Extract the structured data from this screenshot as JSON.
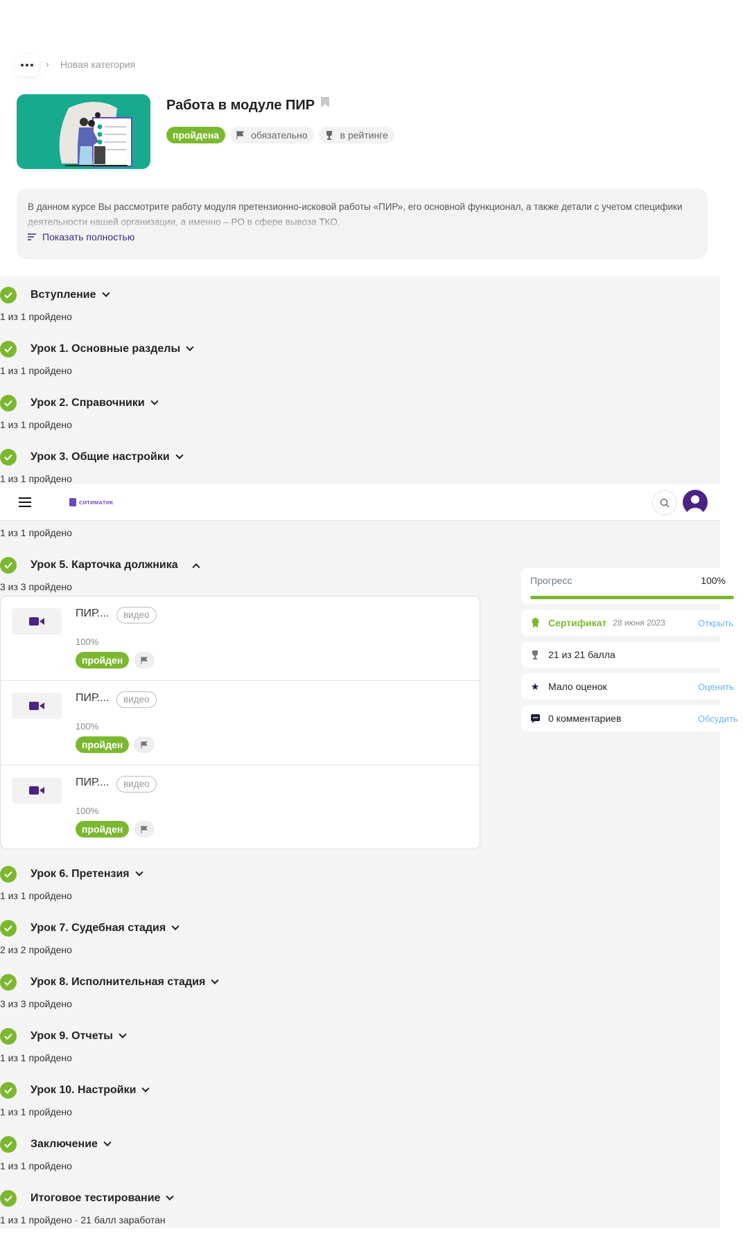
{
  "breadcrumb": {
    "more_icon": "more-dots-icon",
    "current": "Новая категория"
  },
  "course": {
    "title": "Работа в модуле ПИР",
    "chips": {
      "status": "пройдена",
      "required": "обязательно",
      "rating": "в рейтинге"
    },
    "description": "В данном курсе Вы рассмотрите работу модуля претензионно-исковой работы «ПИР», его основной функционал, а также детали с учетом специфики деятельности нашей организации, а именно – РО в сфере вывоза ТКО.",
    "show_more": "Показать полностью"
  },
  "topbar": {
    "logo": "СИТИМАТИК"
  },
  "sections": [
    {
      "title": "Вступление",
      "sub": "1 из 1 пройдено"
    },
    {
      "title": "Урок 1. Основные разделы",
      "sub": "1 из 1 пройдено"
    },
    {
      "title": "Урок 2. Справочники",
      "sub": "1 из 1 пройдено"
    },
    {
      "title": "Урок 3. Общие настройки",
      "sub": "1 из 1 пройдено"
    },
    {
      "sub": "1 из 1 пройдено"
    },
    {
      "title": "Урок 5. Карточка должника",
      "sub": "3 из 3 пройдено",
      "items": [
        {
          "title": "ПИР....",
          "tag": "видео",
          "percent": "100%",
          "status": "пройден"
        },
        {
          "title": "ПИР....",
          "tag": "видео",
          "percent": "100%",
          "status": "пройден"
        },
        {
          "title": "ПИР....",
          "tag": "видео",
          "percent": "100%",
          "status": "пройден"
        }
      ]
    },
    {
      "title": "Урок 6. Претензия",
      "sub": "1 из 1 пройдено"
    },
    {
      "title": "Урок 7. Судебная стадия",
      "sub": "2 из 2 пройдено"
    },
    {
      "title": "Урок 8. Исполнительная стадия",
      "sub": "3 из 3 пройдено"
    },
    {
      "title": "Урок 9. Отчеты",
      "sub": "1 из 1 пройдено"
    },
    {
      "title": "Урок 10. Настройки",
      "sub": "1 из 1 пройдено"
    },
    {
      "title": "Заключение",
      "sub": "1 из 1 пройдено"
    },
    {
      "title": "Итоговое тестирование",
      "sub": "1 из 1 пройдено  ·  21 балл заработан"
    }
  ],
  "sidebar": {
    "progress_label": "Прогресс",
    "progress_value": "100%",
    "progress_percent": 100,
    "certificate": "Сертификат",
    "certificate_date": "28 июня 2023",
    "certificate_link": "Открыть",
    "score": "21 из 21 балла",
    "rating": "Мало оценок",
    "rating_link": "Оценить",
    "comments": "0 комментариев",
    "comments_link": "Обсудить"
  },
  "colors": {
    "accent_green": "#7cb82f",
    "brand_purple": "#4a2385",
    "link": "#6ab4ea"
  }
}
